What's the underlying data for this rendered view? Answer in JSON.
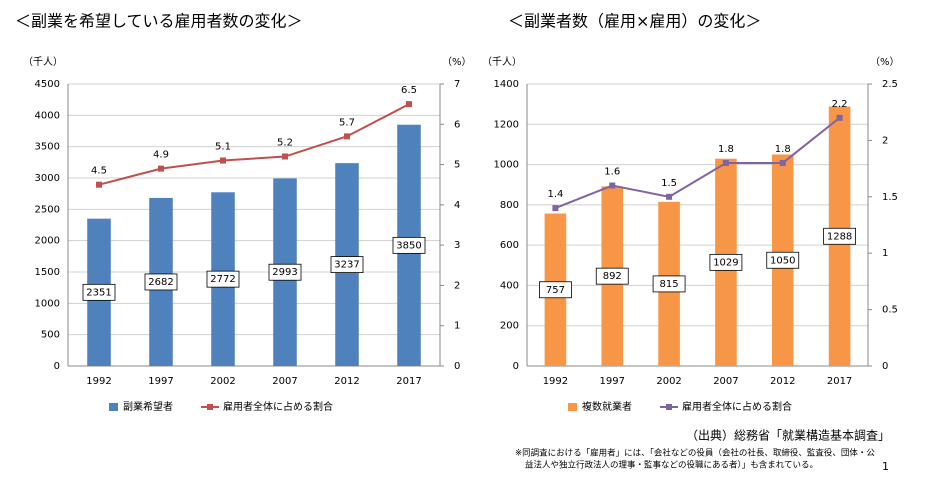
{
  "chart_data": [
    {
      "type": "bar",
      "title": "＜副業を希望している雇用者数の変化＞",
      "y_label": "（千人）",
      "y2_label": "（%）",
      "categories": [
        "1992",
        "1997",
        "2002",
        "2007",
        "2012",
        "2017"
      ],
      "series": [
        {
          "name": "副業希望者",
          "color": "#4f81bd",
          "values": [
            2351,
            2682,
            2772,
            2993,
            3237,
            3850
          ]
        },
        {
          "name": "雇用者全体に占める割合",
          "color": "#c0504d",
          "type": "line",
          "axis": "y2",
          "values": [
            4.5,
            4.9,
            5.1,
            5.2,
            5.7,
            6.5
          ]
        }
      ],
      "ylim": [
        0,
        4500
      ],
      "yticks": [
        0,
        500,
        1000,
        1500,
        2000,
        2500,
        3000,
        3500,
        4000,
        4500
      ],
      "y2lim": [
        0,
        7
      ],
      "y2ticks": [
        0,
        1,
        2,
        3,
        4,
        5,
        6,
        7
      ],
      "grid": true
    },
    {
      "type": "bar",
      "title": "＜副業者数（雇用×雇用）の変化＞",
      "y_label": "（千人）",
      "y2_label": "（%）",
      "categories": [
        "1992",
        "1997",
        "2002",
        "2007",
        "2012",
        "2017"
      ],
      "series": [
        {
          "name": "複数就業者",
          "color": "#f79646",
          "values": [
            757,
            892,
            815,
            1029,
            1050,
            1288
          ]
        },
        {
          "name": "雇用者全体に占める割合",
          "color": "#8064a2",
          "type": "line",
          "axis": "y2",
          "values": [
            1.4,
            1.6,
            1.5,
            1.8,
            1.8,
            2.2
          ]
        }
      ],
      "ylim": [
        0,
        1400
      ],
      "yticks": [
        0,
        200,
        400,
        600,
        800,
        1000,
        1200,
        1400
      ],
      "y2lim": [
        0,
        2.5
      ],
      "y2ticks": [
        0,
        0.5,
        1,
        1.5,
        2,
        2.5
      ],
      "grid": true
    }
  ],
  "source": "（出典）総務省「就業構造基本調査」",
  "footnote": [
    "※同調査における「雇用者」には、「会社などの役員（会社の社長、取締役、監査役、団体・公",
    "益法人や独立行政法人の理事・監事などの役職にある者）」も含まれている。"
  ],
  "page_number": "1"
}
